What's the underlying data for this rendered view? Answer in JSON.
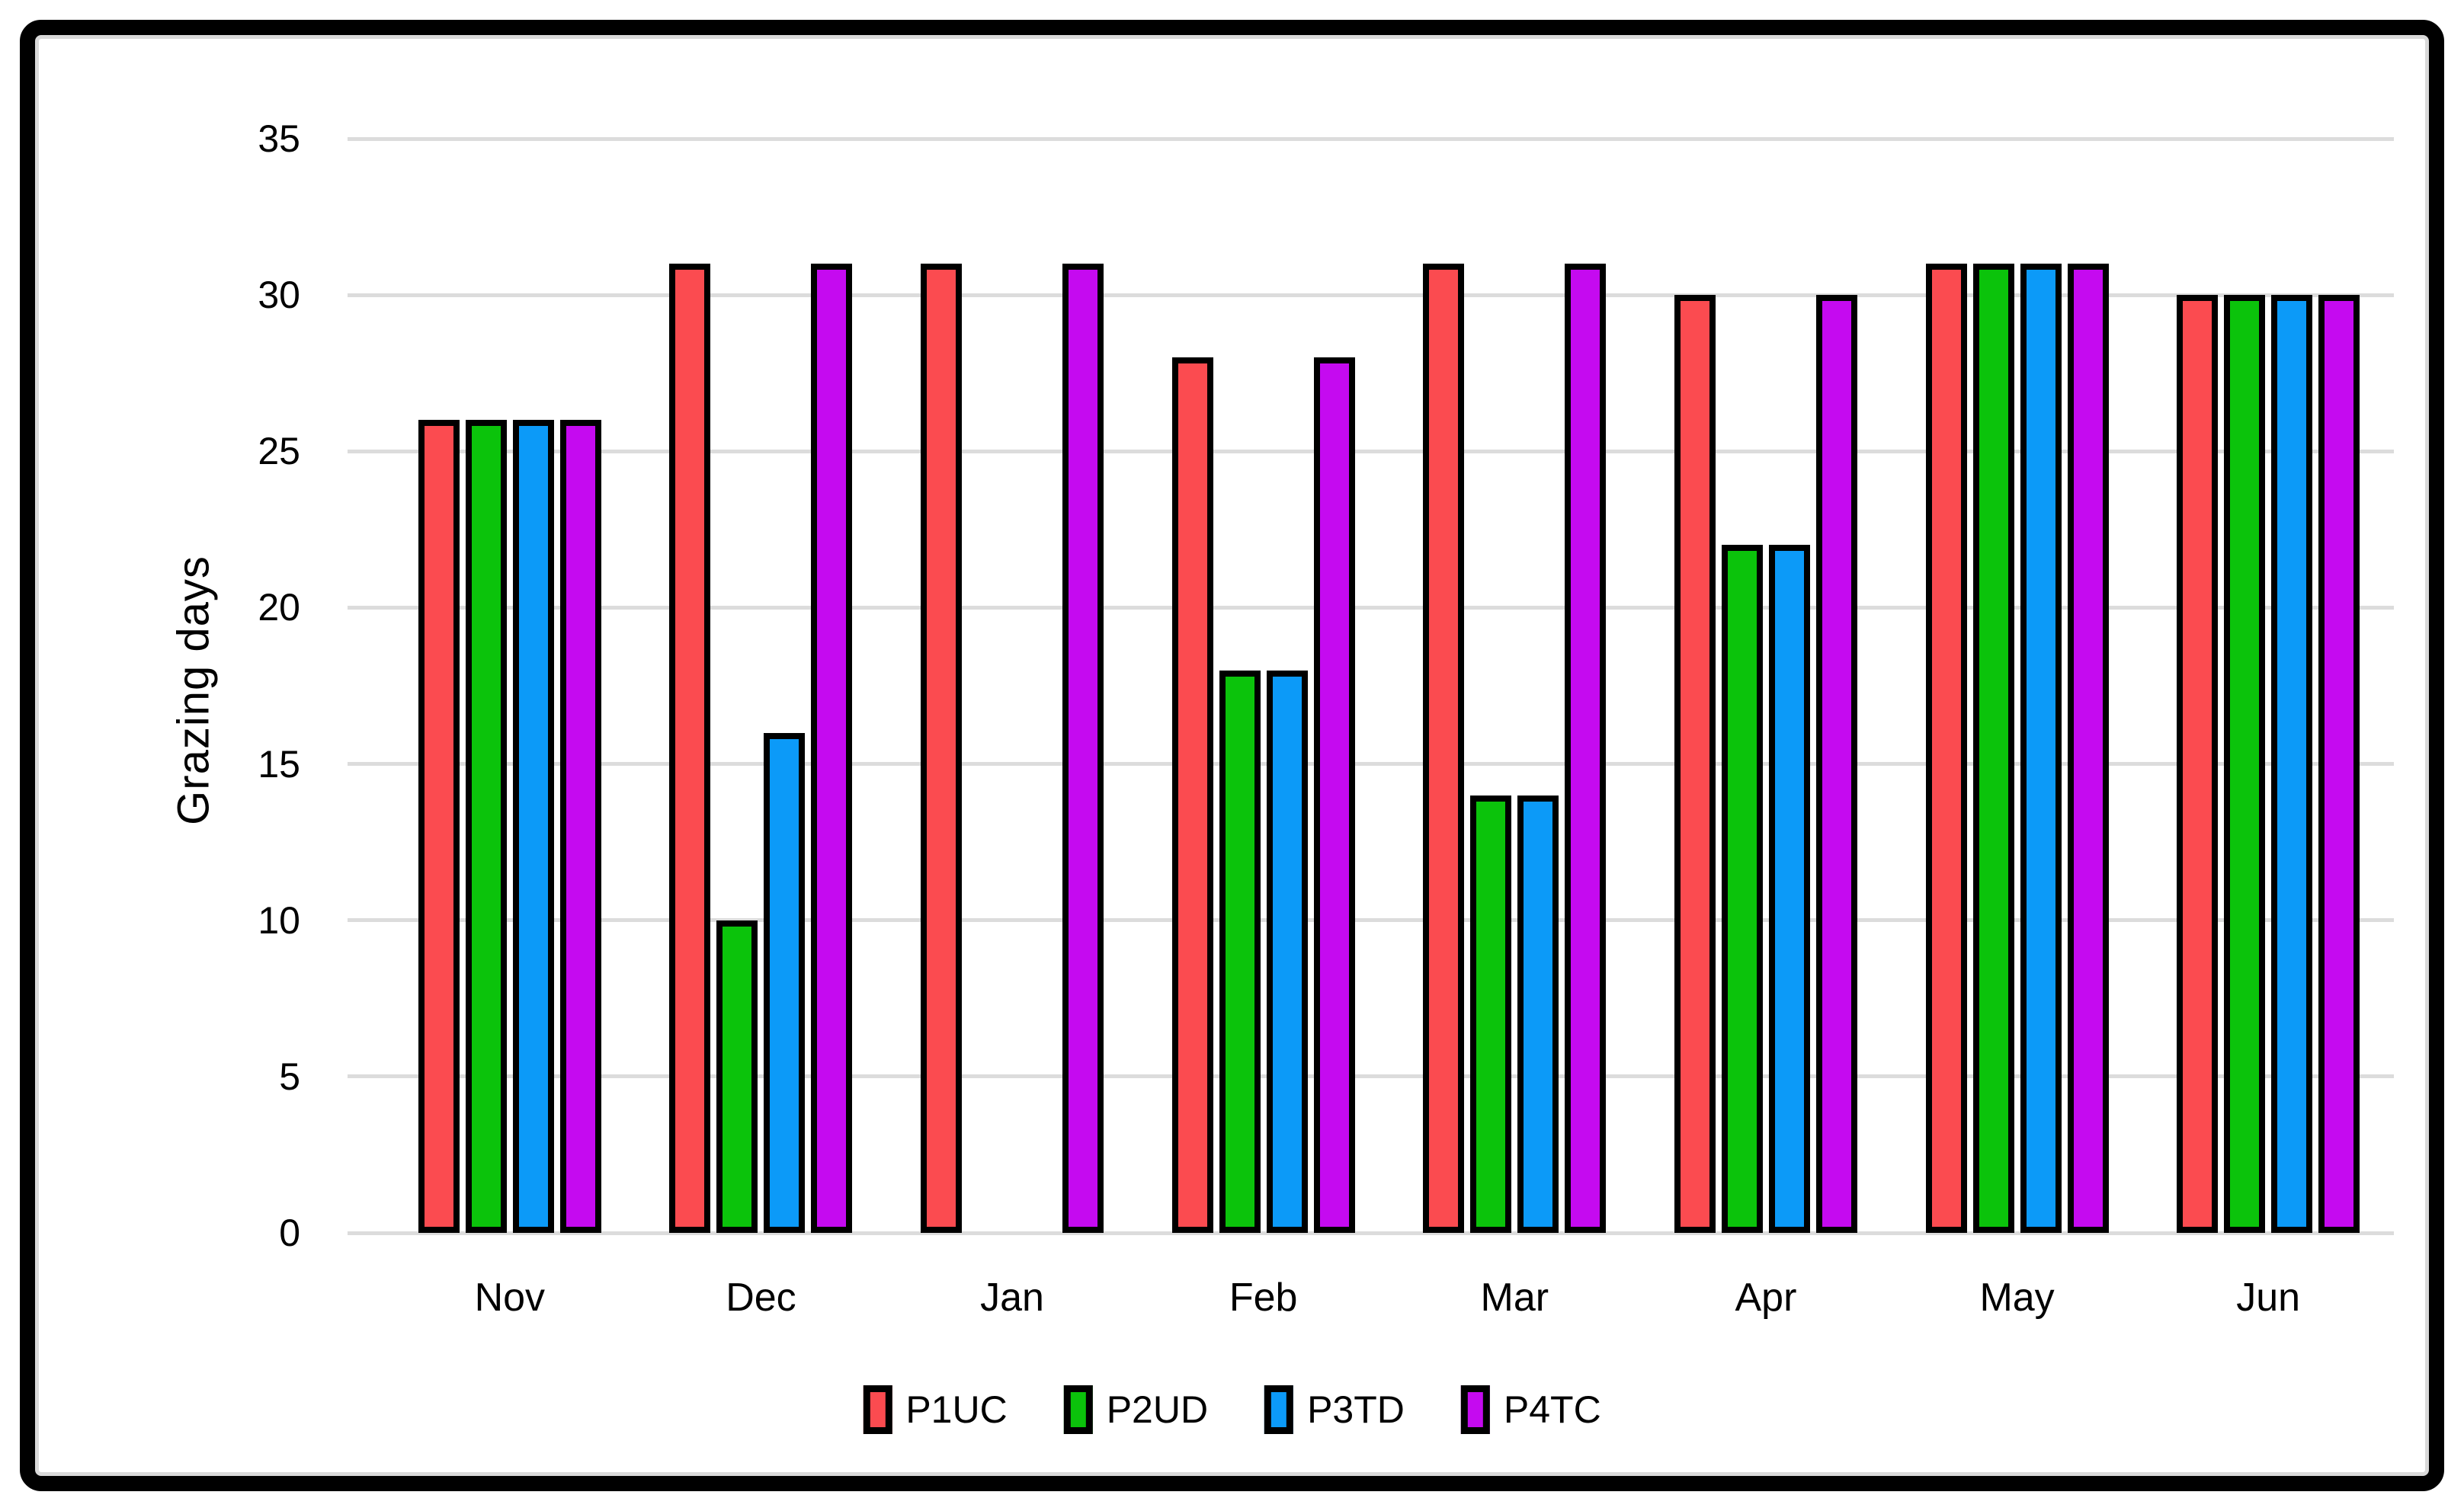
{
  "chart_data": {
    "type": "bar",
    "title": "",
    "ylabel": "Grazing days",
    "xlabel": "",
    "categories": [
      "Nov",
      "Dec",
      "Jan",
      "Feb",
      "Mar",
      "Apr",
      "May",
      "Jun"
    ],
    "series": [
      {
        "name": "P1UC",
        "color": "#FB4B50",
        "values": [
          26,
          31,
          31,
          28,
          31,
          30,
          31,
          30
        ]
      },
      {
        "name": "P2UD",
        "color": "#0BC30B",
        "values": [
          26,
          10,
          0,
          18,
          14,
          22,
          31,
          30
        ]
      },
      {
        "name": "P3TD",
        "color": "#0C9AF8",
        "values": [
          26,
          16,
          0,
          18,
          14,
          22,
          31,
          30
        ]
      },
      {
        "name": "P4TC",
        "color": "#C50AF0",
        "values": [
          26,
          31,
          31,
          28,
          31,
          30,
          31,
          30
        ]
      }
    ],
    "ylim": [
      0,
      35
    ],
    "ytick_step": 5,
    "yticks": [
      "0",
      "5",
      "10",
      "15",
      "20",
      "25",
      "30",
      "35"
    ],
    "grid": "horizontal",
    "legend_position": "bottom"
  },
  "styles": {
    "background": "#FFFFFF",
    "frame_border": "#000000",
    "frame_inner_line": "#D9D9D9",
    "gridline_color": "#DCDCDC",
    "bar_outline": "#000000",
    "text_color": "#000000"
  }
}
